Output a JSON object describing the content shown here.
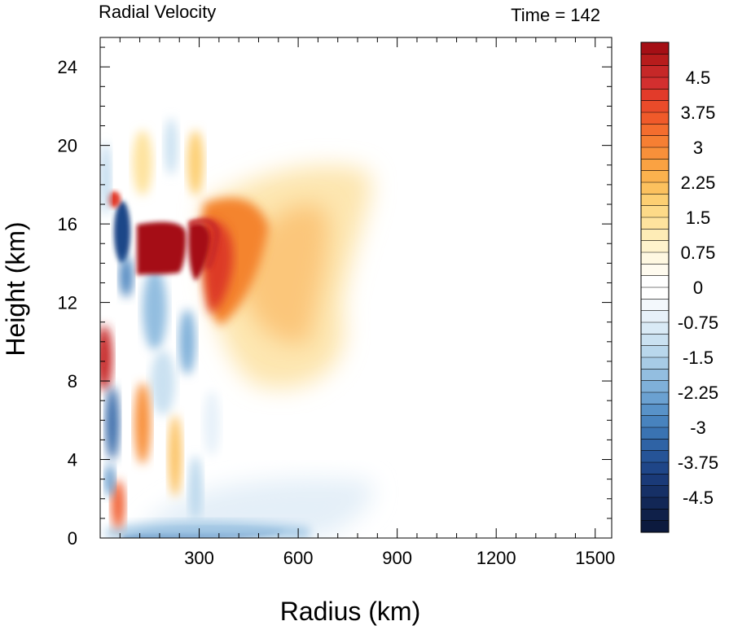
{
  "chart_data": {
    "type": "heatmap",
    "title_left": "Radial Velocity",
    "title_right": "Time = 142",
    "xlabel": "Radius (km)",
    "ylabel": "Height (km)",
    "xlim": [
      0,
      1550
    ],
    "ylim": [
      0,
      25.5
    ],
    "x_ticks": [
      300,
      600,
      900,
      1200,
      1500
    ],
    "y_ticks": [
      0,
      4,
      8,
      12,
      16,
      20,
      24
    ],
    "colorbar": {
      "min": -5.25,
      "max": 5.25,
      "step": 0.25,
      "tick_labels": [
        "4.5",
        "3.75",
        "3",
        "2.25",
        "1.5",
        "0.75",
        "0",
        "-0.75",
        "-1.5",
        "-2.25",
        "-3",
        "-3.75",
        "-4.5"
      ],
      "tick_values": [
        4.5,
        3.75,
        3,
        2.25,
        1.5,
        0.75,
        0,
        -0.75,
        -1.5,
        -2.25,
        -3,
        -3.75,
        -4.5
      ],
      "colors_high_to_low": [
        "#a50f15",
        "#b71c1c",
        "#c62828",
        "#d32f2f",
        "#e23b2a",
        "#ea4b2a",
        "#f05a2a",
        "#f46d2e",
        "#f67f33",
        "#f8903a",
        "#faa242",
        "#fbb24e",
        "#fcc15e",
        "#fdcf72",
        "#fdda88",
        "#fee39e",
        "#feecb6",
        "#fff3cc",
        "#fff8e1",
        "#fffbef",
        "#ffffff",
        "#ffffff",
        "#f3f8fc",
        "#e7f1f9",
        "#d9eaf6",
        "#cae1f1",
        "#b9d7ec",
        "#a7cbe6",
        "#93bee0",
        "#7fb0d9",
        "#6ba1d1",
        "#5892c8",
        "#4883be",
        "#3a73b2",
        "#2f63a5",
        "#265497",
        "#1f4688",
        "#1a3a78",
        "#163066",
        "#122756",
        "#0f2049",
        "#0c1a3e"
      ]
    },
    "features": [
      {
        "name": "upper outflow max (red core)",
        "r": [
          150,
          320
        ],
        "z": [
          13,
          16
        ],
        "value": 5.0
      },
      {
        "name": "upper outflow spread",
        "r": [
          320,
          700
        ],
        "z": [
          9,
          18
        ],
        "value": 1.5
      },
      {
        "name": "boundary-layer inflow",
        "r": [
          100,
          700
        ],
        "z": [
          0,
          1
        ],
        "value": -3.0
      },
      {
        "name": "inner-core oscillations",
        "r": [
          0,
          300
        ],
        "z": [
          0,
          21
        ],
        "value": 0
      }
    ]
  }
}
